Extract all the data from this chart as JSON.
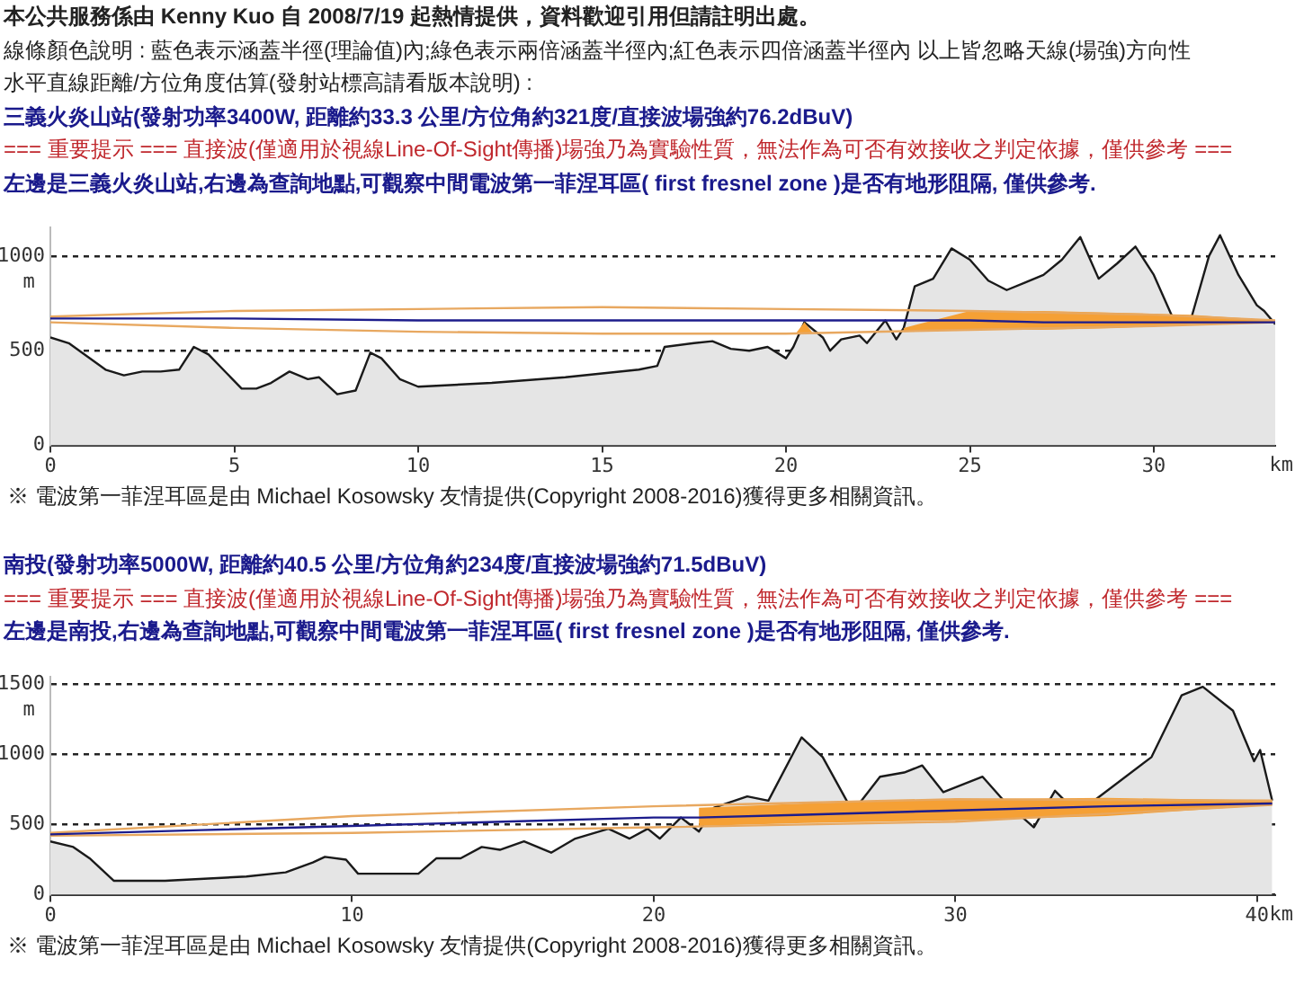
{
  "chart_data": [
    {
      "type": "area",
      "title": "三義火炎山站(發射功率3400W, 距離約33.3 公里/方位角約321度/直接波場強約76.2dBuV)",
      "subtitle": "=== 重要提示 === 直接波(僅適用於視線Line-Of-Sight傳播)場強乃為實驗性質，無法作為可否有效接收之判定依據，僅供參考 ===",
      "annotations": [
        "本公共服務係由 Kenny Kuo 自 2008/7/19 起熱情提供，資料歡迎引用但請註明出處。",
        "線條顏色說明 : 藍色表示涵蓋半徑(理論值)內;綠色表示兩倍涵蓋半徑內;紅色表示四倍涵蓋半徑內  以上皆忽略天線(場強)方向性",
        "水平直線距離/方位角度估算(發射站標高請看版本說明) :",
        "左邊是三義火炎山站,右邊為查詢地點,可觀察中間電波第一菲涅耳區( first fresnel zone )是否有地形阻隔, 僅供參考.",
        "※ 電波第一菲涅耳區是由 Michael Kosowsky 友情提供(Copyright 2008-2016)獲得更多相關資訊。"
      ],
      "xlabel": "km",
      "ylabel": "m",
      "xlim": [
        0,
        33.3
      ],
      "xticks": [
        0,
        5,
        10,
        15,
        20,
        25,
        30
      ],
      "ylim": [
        0,
        1150
      ],
      "yticks": [
        0,
        500,
        1000
      ],
      "grid": "y",
      "legend": false,
      "marker": "none",
      "series": [
        {
          "color": "#1a1a1a",
          "x": [
            0,
            0.5,
            1,
            1.5,
            2,
            2.5,
            3,
            3.5,
            3.9,
            4.3,
            4.8,
            5.2,
            5.6,
            6,
            6.5,
            7,
            7.3,
            7.8,
            8.3,
            8.7,
            9,
            9.5,
            10,
            12,
            14,
            16,
            16.5,
            16.7,
            17.5,
            18,
            18.5,
            19,
            19.5,
            20,
            20.2,
            20.5,
            21,
            21.2,
            21.5,
            22,
            22.2,
            22.7,
            23,
            23.2,
            23.5,
            24,
            24.5,
            25,
            25.5,
            26,
            26.5,
            27,
            27.5,
            28,
            28.5,
            29,
            29.5,
            30,
            30.5,
            31,
            31.5,
            31.8,
            32.3,
            32.8,
            33,
            33.3
          ],
          "values": [
            570,
            540,
            470,
            400,
            370,
            390,
            390,
            400,
            520,
            480,
            380,
            300,
            300,
            330,
            390,
            350,
            360,
            270,
            290,
            490,
            460,
            350,
            310,
            330,
            360,
            400,
            420,
            520,
            540,
            550,
            510,
            500,
            520,
            460,
            520,
            650,
            570,
            500,
            560,
            580,
            540,
            660,
            560,
            620,
            840,
            880,
            1040,
            980,
            870,
            820,
            860,
            900,
            980,
            1100,
            880,
            960,
            1050,
            900,
            680,
            660,
            1000,
            1110,
            900,
            740,
            710,
            640
          ]
        },
        {
          "type": "line",
          "color": "#1c1c8c",
          "x": [
            0,
            5,
            10,
            15,
            20,
            20.3,
            20.5,
            20.7,
            21,
            23.2,
            25,
            27,
            29,
            31,
            33.3
          ],
          "values": [
            670,
            670,
            660,
            660,
            660,
            660,
            660,
            660,
            660,
            660,
            660,
            650,
            650,
            650,
            650
          ],
          "lower": [
            null,
            null,
            null,
            null,
            null,
            590,
            590,
            590,
            null,
            600,
            610,
            610,
            620,
            640,
            650
          ],
          "upper": [
            null,
            null,
            null,
            null,
            null,
            600,
            650,
            600,
            null,
            620,
            710,
            710,
            700,
            690,
            660
          ]
        },
        {
          "type": "line",
          "color": "#e8a860",
          "x": [
            0,
            5,
            10,
            15,
            20,
            25,
            30,
            33.3
          ],
          "values": [
            680,
            710,
            720,
            730,
            720,
            710,
            690,
            660
          ]
        },
        {
          "type": "line",
          "color": "#e8a860",
          "x": [
            0,
            5,
            10,
            15,
            20,
            25,
            30,
            33.3
          ],
          "values": [
            650,
            620,
            600,
            590,
            590,
            610,
            630,
            650
          ]
        }
      ]
    },
    {
      "type": "area",
      "title": "南投(發射功率5000W, 距離約40.5 公里/方位角約234度/直接波場強約71.5dBuV)",
      "subtitle": "=== 重要提示 === 直接波(僅適用於視線Line-Of-Sight傳播)場強乃為實驗性質，無法作為可否有效接收之判定依據，僅供參考 ===",
      "annotations": [
        "左邊是南投,右邊為查詢地點,可觀察中間電波第一菲涅耳區( first fresnel zone )是否有地形阻隔, 僅供參考.",
        "※ 電波第一菲涅耳區是由 Michael Kosowsky 友情提供(Copyright 2008-2016)獲得更多相關資訊。"
      ],
      "xlabel": "km",
      "ylabel": "m",
      "xlim": [
        0,
        40.6
      ],
      "xticks": [
        0,
        10,
        20,
        30,
        40
      ],
      "ylim": [
        0,
        1550
      ],
      "yticks": [
        0,
        500,
        1000,
        1500
      ],
      "grid": "y",
      "legend": false,
      "marker": "none",
      "series": [
        {
          "color": "#1a1a1a",
          "x": [
            0,
            0.76,
            1.3,
            2.1,
            3.8,
            6.5,
            7.8,
            8.7,
            9.1,
            9.8,
            10.2,
            12.2,
            12.8,
            13.6,
            14.3,
            14.9,
            15.7,
            16.6,
            17.4,
            18.5,
            19.2,
            19.8,
            20.2,
            20.9,
            21.5,
            22,
            23.1,
            23.8,
            24.9,
            25.6,
            26.6,
            27.5,
            28.3,
            28.9,
            29.6,
            30.9,
            31.6,
            32.6,
            33.3,
            34,
            34.6,
            36.5,
            37.5,
            38.2,
            39.2,
            39.9,
            40.1,
            40.5
          ],
          "values": [
            380,
            340,
            260,
            100,
            100,
            130,
            160,
            230,
            270,
            250,
            150,
            150,
            260,
            260,
            340,
            320,
            380,
            300,
            400,
            470,
            400,
            470,
            400,
            550,
            450,
            620,
            700,
            670,
            1120,
            980,
            590,
            840,
            870,
            920,
            730,
            840,
            670,
            480,
            740,
            590,
            670,
            980,
            1420,
            1480,
            1310,
            950,
            1030,
            670
          ]
        },
        {
          "type": "line",
          "color": "#1c1c8c",
          "x": [
            0,
            5,
            10,
            15,
            20,
            21.5,
            25,
            30,
            35,
            40.5
          ],
          "values": [
            430,
            460,
            490,
            520,
            550,
            550,
            570,
            600,
            630,
            650
          ],
          "lower": [
            null,
            null,
            null,
            null,
            null,
            490,
            510,
            530,
            560,
            640
          ],
          "upper": [
            null,
            null,
            null,
            null,
            null,
            620,
            650,
            680,
            690,
            670
          ]
        },
        {
          "type": "line",
          "color": "#e8a860",
          "x": [
            0,
            10,
            20,
            30,
            40.5
          ],
          "values": [
            440,
            560,
            630,
            680,
            670
          ]
        },
        {
          "type": "line",
          "color": "#e8a860",
          "x": [
            0,
            10,
            20,
            30,
            40.5
          ],
          "values": [
            420,
            440,
            480,
            520,
            640
          ]
        }
      ]
    }
  ]
}
